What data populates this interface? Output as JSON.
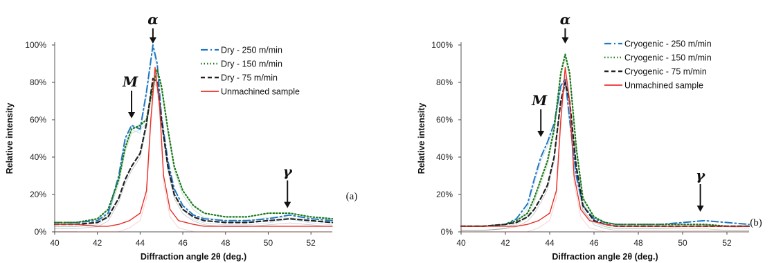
{
  "chart_data": [
    {
      "type": "line",
      "panel_label": "(a)",
      "xlabel": "Diffraction angle 2θ (deg.)",
      "ylabel": "Relative intensity",
      "xlim": [
        40,
        53
      ],
      "ylim": [
        0,
        100
      ],
      "x_ticks": [
        "40",
        "42",
        "44",
        "46",
        "48",
        "50",
        "52"
      ],
      "y_ticks": [
        "0%",
        "20%",
        "40%",
        "60%",
        "80%",
        "100%"
      ],
      "legend_position": "top-right",
      "annotations": [
        {
          "text": "α",
          "x": 44.6,
          "y": 100
        },
        {
          "text": "M",
          "x": 43.6,
          "y": 60
        },
        {
          "text": "γ",
          "x": 50.9,
          "y": 12
        }
      ],
      "series": [
        {
          "name": "Dry - 250 m/min",
          "color": "#1f77c4",
          "style": "dashdot",
          "x": [
            40,
            41,
            42,
            42.5,
            43,
            43.3,
            43.6,
            44,
            44.3,
            44.6,
            44.8,
            45,
            45.3,
            45.6,
            46,
            46.5,
            47,
            48,
            49,
            50,
            51,
            52,
            53
          ],
          "y": [
            5,
            5,
            6,
            10,
            30,
            50,
            57,
            55,
            75,
            100,
            90,
            62,
            38,
            23,
            14,
            9,
            7,
            6,
            6,
            7,
            9,
            7,
            6
          ]
        },
        {
          "name": "Dry - 150 m/min",
          "color": "#1a7a1a",
          "style": "dotted",
          "x": [
            40,
            41,
            42,
            42.5,
            43,
            43.3,
            43.6,
            44,
            44.3,
            44.6,
            44.8,
            45,
            45.3,
            45.6,
            46,
            46.5,
            47,
            48,
            49,
            50,
            51,
            52,
            53
          ],
          "y": [
            5,
            5,
            7,
            12,
            28,
            45,
            55,
            57,
            60,
            78,
            87,
            78,
            55,
            35,
            22,
            14,
            10,
            8,
            8,
            10,
            10,
            8,
            7
          ]
        },
        {
          "name": "Dry - 75 m/min",
          "color": "#222222",
          "style": "dashed",
          "x": [
            40,
            41,
            42,
            42.5,
            43,
            43.3,
            43.6,
            44,
            44.3,
            44.6,
            44.8,
            45,
            45.3,
            45.6,
            46,
            46.5,
            47,
            48,
            49,
            50,
            51,
            52,
            53
          ],
          "y": [
            4,
            4,
            5,
            8,
            18,
            28,
            35,
            42,
            58,
            82,
            80,
            60,
            35,
            20,
            12,
            8,
            6,
            5,
            5,
            6,
            7,
            6,
            5
          ]
        },
        {
          "name": "Unmachined sample",
          "color": "#e8302a",
          "style": "solid",
          "x": [
            40,
            41,
            42,
            42.5,
            43,
            43.5,
            44,
            44.3,
            44.5,
            44.7,
            44.9,
            45.1,
            45.4,
            45.8,
            46.5,
            47,
            48,
            49,
            50,
            51,
            52,
            53
          ],
          "y": [
            4,
            4,
            3,
            3,
            4,
            6,
            10,
            22,
            60,
            88,
            70,
            30,
            12,
            6,
            4,
            3,
            3,
            3,
            3,
            3,
            3,
            3
          ]
        }
      ]
    },
    {
      "type": "line",
      "panel_label": "(b)",
      "xlabel": "Diffraction angle 2θ (deg.)",
      "ylabel": "Relative intensity",
      "xlim": [
        40,
        53
      ],
      "ylim": [
        0,
        100
      ],
      "x_ticks": [
        "40",
        "42",
        "44",
        "46",
        "48",
        "50",
        "52"
      ],
      "y_ticks": [
        "0%",
        "20%",
        "40%",
        "60%",
        "80%",
        "100%"
      ],
      "legend_position": "top-right",
      "annotations": [
        {
          "text": "α",
          "x": 44.7,
          "y": 100
        },
        {
          "text": "M",
          "x": 43.6,
          "y": 50
        },
        {
          "text": "γ",
          "x": 50.8,
          "y": 10
        }
      ],
      "series": [
        {
          "name": "Cryogenic - 250 m/min",
          "color": "#1f77c4",
          "style": "dashdot",
          "x": [
            40,
            41,
            42,
            42.5,
            43,
            43.3,
            43.6,
            43.9,
            44.2,
            44.5,
            44.7,
            44.9,
            45.2,
            45.5,
            46,
            46.5,
            47,
            48,
            49,
            50,
            51,
            52,
            53
          ],
          "y": [
            3,
            3,
            4,
            7,
            15,
            28,
            40,
            48,
            58,
            78,
            82,
            60,
            30,
            14,
            7,
            5,
            4,
            4,
            4,
            5,
            6,
            5,
            4
          ]
        },
        {
          "name": "Cryogenic - 150 m/min",
          "color": "#1a7a1a",
          "style": "dotted",
          "x": [
            40,
            41,
            42,
            42.5,
            43,
            43.3,
            43.6,
            43.9,
            44.2,
            44.5,
            44.7,
            44.9,
            45.2,
            45.5,
            46,
            46.5,
            47,
            48,
            49,
            50,
            51,
            52,
            53
          ],
          "y": [
            3,
            3,
            4,
            6,
            10,
            18,
            28,
            38,
            55,
            85,
            95,
            85,
            45,
            18,
            8,
            5,
            4,
            4,
            4,
            4,
            4,
            3,
            3
          ]
        },
        {
          "name": "Cryogenic - 75 m/min",
          "color": "#222222",
          "style": "dashed",
          "x": [
            40,
            41,
            42,
            42.5,
            43,
            43.3,
            43.6,
            43.9,
            44.2,
            44.5,
            44.7,
            44.9,
            45.2,
            45.5,
            46,
            46.5,
            47,
            48,
            49,
            50,
            51,
            52,
            53
          ],
          "y": [
            3,
            3,
            4,
            5,
            8,
            12,
            18,
            25,
            40,
            70,
            80,
            70,
            35,
            14,
            6,
            4,
            3,
            3,
            3,
            3,
            3,
            3,
            3
          ]
        },
        {
          "name": "Unmachined sample",
          "color": "#e8302a",
          "style": "solid",
          "x": [
            40,
            41,
            42,
            42.5,
            43,
            43.5,
            44,
            44.3,
            44.5,
            44.7,
            44.9,
            45.1,
            45.4,
            45.8,
            46.5,
            47,
            48,
            49,
            50,
            51,
            52,
            53
          ],
          "y": [
            3,
            3,
            3,
            3,
            4,
            6,
            10,
            22,
            60,
            88,
            70,
            30,
            12,
            6,
            4,
            3,
            3,
            3,
            3,
            3,
            3,
            3
          ]
        }
      ]
    }
  ]
}
